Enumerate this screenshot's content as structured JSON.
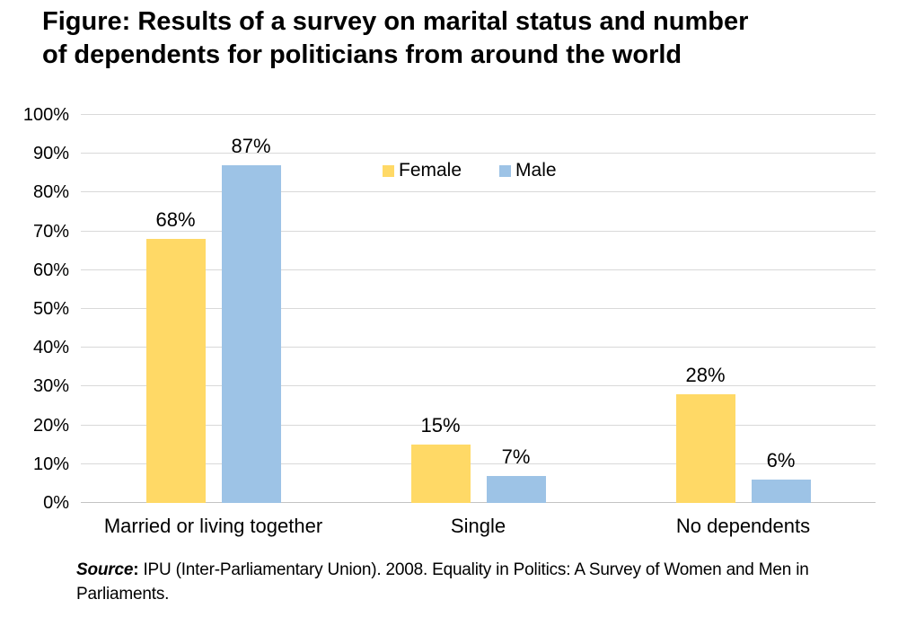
{
  "title": {
    "full": "Figure: Results of a survey on marital status and number of dependents for politicians from around the world",
    "lines": [
      "Figure: Results of a survey on marital status and number",
      "of dependents for politicians from around the world"
    ]
  },
  "source": {
    "label": "Source",
    "colon": ":",
    "text": " IPU (Inter-Parliamentary Union). 2008. Equality in Politics: A Survey of Women and Men in Parliaments."
  },
  "colors": {
    "female": "#FFD966",
    "male": "#9DC3E6",
    "gridline": "#D9D9D9",
    "axis_baseline": "#C3C3C3",
    "text": "#000000",
    "background": "#FFFFFF"
  },
  "chart_data": {
    "type": "bar",
    "categories": [
      "Married or living together",
      "Single",
      "No dependents"
    ],
    "series": [
      {
        "name": "Female",
        "color_key": "female",
        "values": [
          68,
          15,
          28
        ],
        "labels": [
          "68%",
          "15%",
          "28%"
        ]
      },
      {
        "name": "Male",
        "color_key": "male",
        "values": [
          87,
          7,
          6
        ],
        "labels": [
          "87%",
          "7%",
          "6%"
        ]
      }
    ],
    "ylim": [
      0,
      100
    ],
    "ytick_step": 10,
    "ytick_labels": [
      "0%",
      "10%",
      "20%",
      "30%",
      "40%",
      "50%",
      "60%",
      "70%",
      "80%",
      "90%",
      "100%"
    ],
    "grid": "horizontal",
    "legend_position": "inside-top-center",
    "xlabel": "",
    "ylabel": ""
  }
}
